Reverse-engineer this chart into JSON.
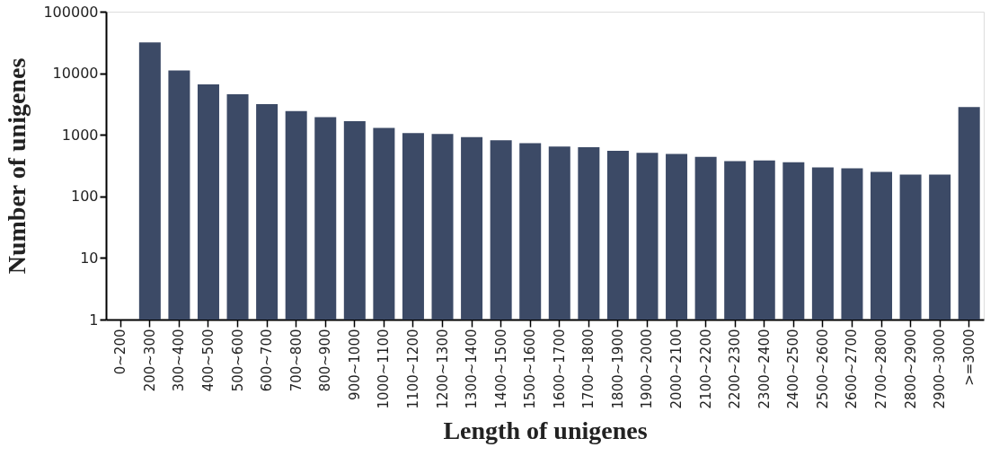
{
  "chart_data": {
    "type": "bar",
    "xlabel": "Length of unigenes",
    "ylabel": "Number of unigenes",
    "categories": [
      "0~200",
      "200~300",
      "300~400",
      "400~500",
      "500~600",
      "600~700",
      "700~800",
      "800~900",
      "900~1000",
      "1000~1100",
      "1100~1200",
      "1200~1300",
      "1300~1400",
      "1400~1500",
      "1500~1600",
      "1600~1700",
      "1700~1800",
      "1800~1900",
      "1900~2000",
      "2000~2100",
      "2100~2200",
      "2200~2300",
      "2300~2400",
      "2400~2500",
      "2500~2600",
      "2600~2700",
      "2700~2800",
      "2800~2900",
      "2900~3000",
      ">=3000"
    ],
    "values": [
      null,
      31600,
      11100,
      6600,
      4570,
      3160,
      2440,
      1930,
      1660,
      1300,
      1070,
      1030,
      920,
      815,
      730,
      645,
      630,
      550,
      510,
      490,
      440,
      375,
      385,
      360,
      295,
      285,
      250,
      226,
      226,
      2820
    ],
    "color": "#3c4a66",
    "log": true,
    "ylim": [
      1,
      100000
    ],
    "yticks": [
      1,
      10,
      100,
      1000,
      10000,
      100000
    ],
    "grid": false
  }
}
